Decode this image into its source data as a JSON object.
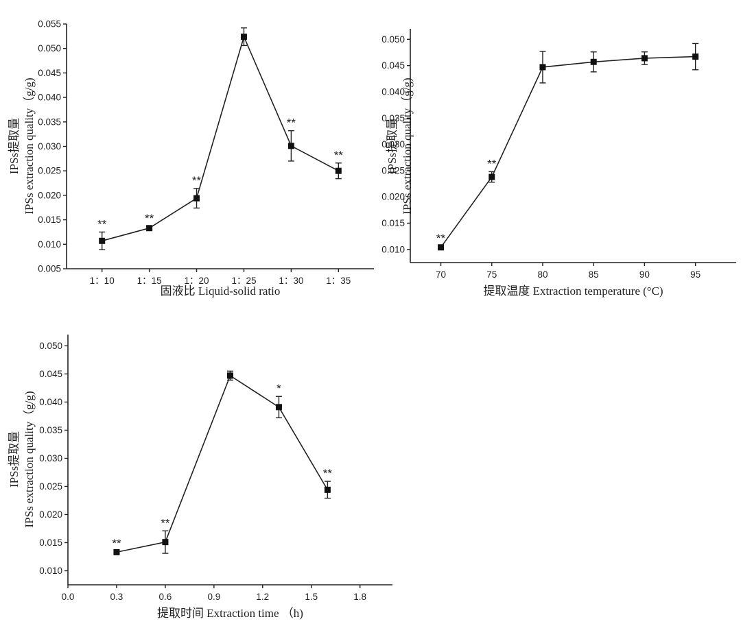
{
  "chart_data": [
    {
      "type": "line",
      "xlabel": "固液比 Liquid-solid ratio",
      "ylabel": "IPSs提取量\nIPSs extraction quality（g/g)",
      "categories": [
        "1：10",
        "1：15",
        "1：20",
        "1：25",
        "1：30",
        "1：35"
      ],
      "ylim": [
        0.005,
        0.055
      ],
      "yticks": [
        0.005,
        0.01,
        0.015,
        0.02,
        0.025,
        0.03,
        0.035,
        0.04,
        0.045,
        0.05,
        0.055
      ],
      "ytick_labels": [
        "0.005",
        "0.010",
        "0.015",
        "0.020",
        "0.025",
        "0.030",
        "0.035",
        "0.040",
        "0.045",
        "0.050",
        "0.055"
      ],
      "values": [
        0.0107,
        0.0133,
        0.0194,
        0.0524,
        0.0301,
        0.025
      ],
      "errors": [
        0.0018,
        0.0004,
        0.002,
        0.0018,
        0.0031,
        0.0016
      ],
      "annotations": [
        "**",
        "**",
        "**",
        "",
        "**",
        "**"
      ]
    },
    {
      "type": "line",
      "xlabel": "提取温度 Extraction temperature (°C)",
      "ylabel": "IPSs提取量\nIPSs extraction quality（g/g)",
      "x": [
        70,
        75,
        80,
        85,
        90,
        95
      ],
      "xticks": [
        70,
        75,
        80,
        85,
        90,
        95
      ],
      "xtick_labels": [
        "70",
        "75",
        "80",
        "85",
        "90",
        "95"
      ],
      "xlim": [
        67,
        99
      ],
      "ylim": [
        0.0075,
        0.052
      ],
      "yticks": [
        0.01,
        0.015,
        0.02,
        0.025,
        0.03,
        0.035,
        0.04,
        0.045,
        0.05
      ],
      "ytick_labels": [
        "0.010",
        "0.015",
        "0.020",
        "0.025",
        "0.030",
        "0.035",
        "0.040",
        "0.045",
        "0.050"
      ],
      "values": [
        0.0104,
        0.0238,
        0.0447,
        0.0457,
        0.0464,
        0.0467
      ],
      "errors": [
        0.0002,
        0.001,
        0.003,
        0.0019,
        0.0012,
        0.0025
      ],
      "annotations": [
        "**",
        "**",
        "",
        "",
        "",
        ""
      ]
    },
    {
      "type": "line",
      "xlabel": "提取时间 Extraction time （h)",
      "ylabel": "IPSs提取量\nIPSs extraction quality（g/g)",
      "x": [
        0.3,
        0.6,
        1.0,
        1.3,
        1.6
      ],
      "xticks": [
        0.0,
        0.3,
        0.6,
        0.9,
        1.2,
        1.5,
        1.8
      ],
      "xtick_labels": [
        "0.0",
        "0.3",
        "0.6",
        "0.9",
        "1.2",
        "1.5",
        "1.8"
      ],
      "xlim": [
        0.0,
        2.0
      ],
      "ylim": [
        0.0075,
        0.052
      ],
      "yticks": [
        0.01,
        0.015,
        0.02,
        0.025,
        0.03,
        0.035,
        0.04,
        0.045,
        0.05
      ],
      "ytick_labels": [
        "0.010",
        "0.015",
        "0.020",
        "0.025",
        "0.030",
        "0.035",
        "0.040",
        "0.045",
        "0.050"
      ],
      "values": [
        0.0133,
        0.0151,
        0.0447,
        0.0391,
        0.0244
      ],
      "errors": [
        0.0002,
        0.002,
        0.0008,
        0.0019,
        0.0015
      ],
      "annotations": [
        "**",
        "**",
        "",
        "*",
        "**"
      ]
    }
  ]
}
